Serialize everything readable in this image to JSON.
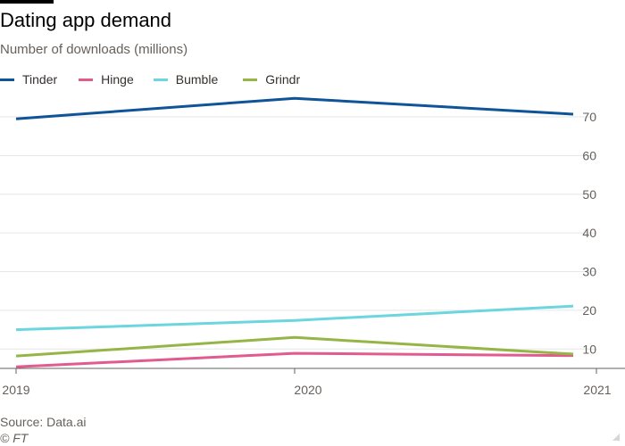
{
  "header": {
    "title": "Dating app demand",
    "subtitle": "Number of downloads (millions)"
  },
  "footer": {
    "source": "Source: Data.ai",
    "copyright": "© FT"
  },
  "colors": {
    "Tinder": "#0f5499",
    "Hinge": "#e25a8e",
    "Bumble": "#6bd6dd",
    "Grindr": "#96b547",
    "grid": "#e6e6e6",
    "axis": "#66605c"
  },
  "chart_data": {
    "type": "line",
    "title": "Dating app demand",
    "subtitle": "Number of downloads (millions)",
    "x": [
      "2019",
      "2020",
      "2021"
    ],
    "y_ticks": [
      10,
      20,
      30,
      40,
      50,
      60,
      70
    ],
    "ylim": [
      5,
      76
    ],
    "grid": true,
    "y_axis_side": "right",
    "legend_position": "top-left",
    "series": [
      {
        "name": "Tinder",
        "values": [
          69.5,
          74.8,
          70.7
        ]
      },
      {
        "name": "Hinge",
        "values": [
          5.4,
          8.9,
          8.3
        ]
      },
      {
        "name": "Bumble",
        "values": [
          15.0,
          17.4,
          21.1
        ]
      },
      {
        "name": "Grindr",
        "values": [
          8.2,
          13.0,
          8.7
        ]
      }
    ]
  }
}
